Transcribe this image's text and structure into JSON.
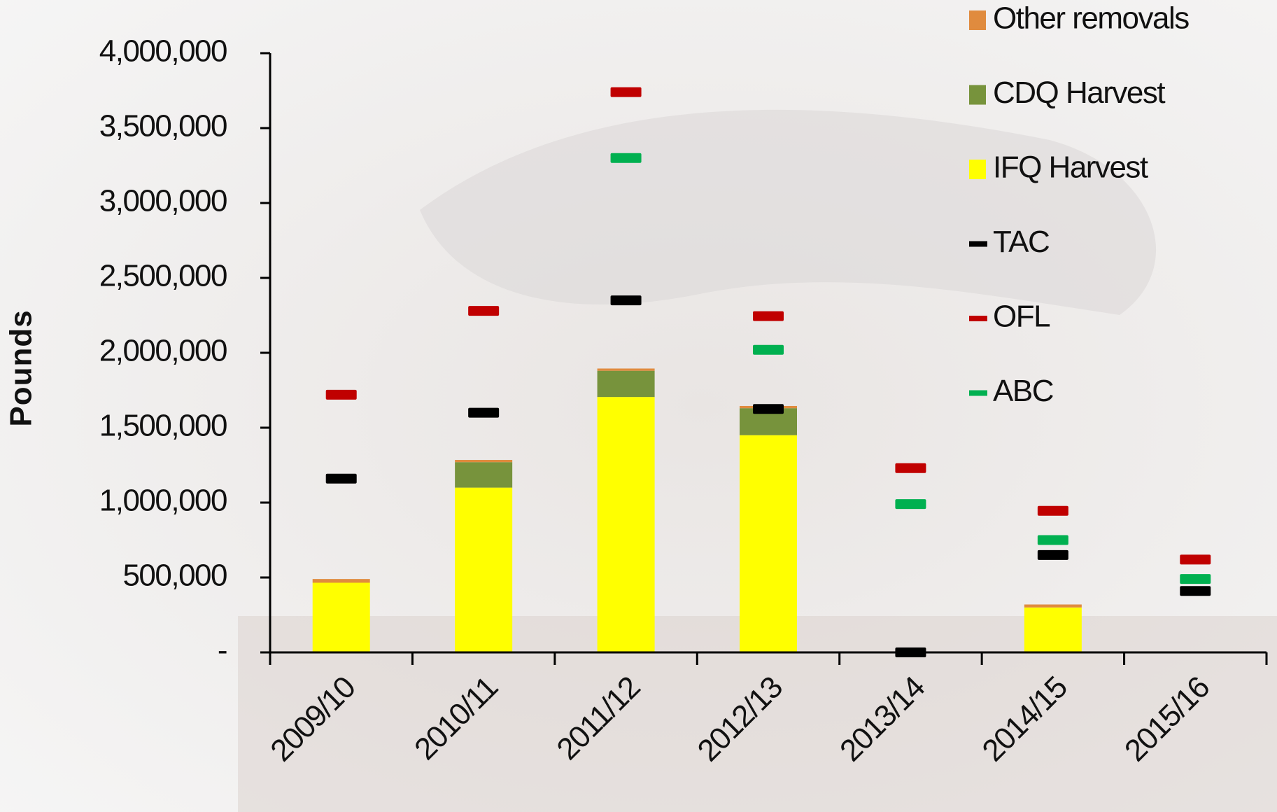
{
  "chart_data": {
    "type": "bar",
    "y_label": "Pounds",
    "categories": [
      "2009/10",
      "2010/11",
      "2011/12",
      "2012/13",
      "2013/14",
      "2014/15",
      "2015/16"
    ],
    "series": [
      {
        "name": "Other removals",
        "color": "#e08b3e",
        "kind": "bar",
        "values": [
          25000,
          15000,
          15000,
          15000,
          0,
          20000,
          null
        ]
      },
      {
        "name": "CDQ Harvest",
        "color": "#77933c",
        "kind": "bar",
        "values": [
          0,
          170000,
          175000,
          180000,
          0,
          0,
          null
        ]
      },
      {
        "name": "IFQ Harvest",
        "color": "#ffff00",
        "kind": "bar",
        "values": [
          465000,
          1100000,
          1705000,
          1450000,
          0,
          300000,
          null
        ]
      },
      {
        "name": "TAC",
        "color": "#000000",
        "kind": "marker",
        "values": [
          1160000,
          1600000,
          2350000,
          1625000,
          0,
          650000,
          410000
        ]
      },
      {
        "name": "OFL",
        "color": "#c00000",
        "kind": "marker",
        "values": [
          1720000,
          2280000,
          3740000,
          2245000,
          1230000,
          945000,
          620000
        ]
      },
      {
        "name": "ABC",
        "color": "#00b050",
        "kind": "marker",
        "values": [
          null,
          null,
          3300000,
          2020000,
          990000,
          750000,
          490000
        ]
      }
    ],
    "ylim": [
      0,
      4000000
    ],
    "yticks": [
      {
        "value": 0,
        "label": "-"
      },
      {
        "value": 500000,
        "label": "500,000"
      },
      {
        "value": 1000000,
        "label": "1,000,000"
      },
      {
        "value": 1500000,
        "label": "1,500,000"
      },
      {
        "value": 2000000,
        "label": "2,000,000"
      },
      {
        "value": 2500000,
        "label": "2,500,000"
      },
      {
        "value": 3000000,
        "label": "3,000,000"
      },
      {
        "value": 3500000,
        "label": "3,500,000"
      },
      {
        "value": 4000000,
        "label": "4,000,000"
      }
    ],
    "legend": "top-right"
  }
}
